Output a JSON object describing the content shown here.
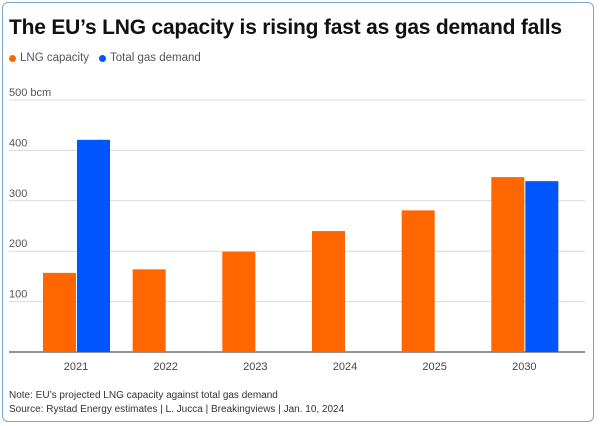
{
  "header": {
    "title": "The EU’s LNG capacity is rising fast as gas demand falls"
  },
  "legend": {
    "items": [
      {
        "label": "LNG capacity",
        "color": "#ff6600"
      },
      {
        "label": "Total gas demand",
        "color": "#0055ff"
      }
    ]
  },
  "chart_data": {
    "type": "bar",
    "categories": [
      "2021",
      "2022",
      "2023",
      "2024",
      "2025",
      "2030"
    ],
    "series": [
      {
        "name": "LNG capacity",
        "color": "#ff6600",
        "values": [
          157,
          164,
          199,
          240,
          281,
          347
        ]
      },
      {
        "name": "Total gas demand",
        "color": "#0055ff",
        "values": [
          421,
          null,
          null,
          null,
          null,
          339
        ]
      }
    ],
    "y_ticks": [
      {
        "value": 100,
        "label": "100"
      },
      {
        "value": 200,
        "label": "200"
      },
      {
        "value": 300,
        "label": "300"
      },
      {
        "value": 400,
        "label": "400"
      },
      {
        "value": 500,
        "label": "500 bcm"
      }
    ],
    "ylim": [
      0,
      500
    ],
    "grid": true,
    "legend_position": "top-left"
  },
  "footer": {
    "note": "Note: EU’s projected LNG capacity against total gas demand",
    "source": "Source: Rystad Energy estimates | L. Jucca | Breakingviews | Jan. 10, 2024"
  }
}
